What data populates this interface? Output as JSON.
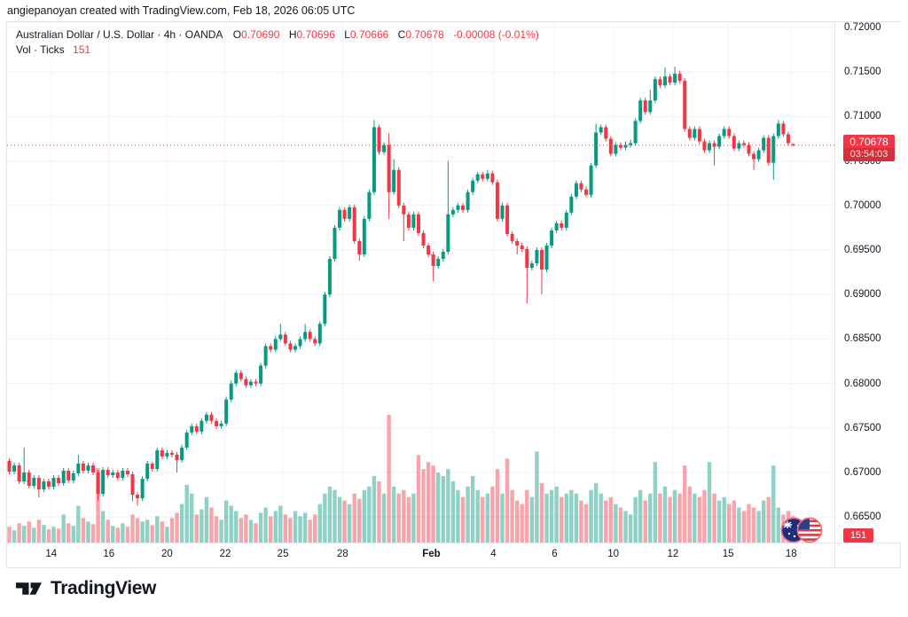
{
  "attribution": "angiepanoyan created with TradingView.com, Feb 18, 2026 06:05 UTC",
  "legend": {
    "symbol_title": "Australian Dollar / U.S. Dollar · 4h · OANDA",
    "o_label": "O",
    "o_value": "0.70690",
    "h_label": "H",
    "h_value": "0.70696",
    "l_label": "L",
    "l_value": "0.70666",
    "c_label": "C",
    "c_value": "0.70678",
    "change": "-0.00008 (-0.01%)",
    "volume_label": "Vol · Ticks",
    "volume_value": "151"
  },
  "price_badge": {
    "price": "0.70678",
    "countdown": "03:54:03"
  },
  "volume_badge": "151",
  "logo_text": "TradingView",
  "colors": {
    "up": "#089981",
    "down": "#f23645",
    "accent_red": "#f23645",
    "grid": "#f0f3fa",
    "frame": "#e0e3eb",
    "text": "#131722",
    "vol_up": "rgba(8,153,129,0.45)",
    "vol_down": "rgba(242,54,69,0.45)"
  },
  "chart_data": {
    "type": "candlestick",
    "symbol": "AUD/USD",
    "interval": "4h",
    "exchange": "OANDA",
    "last_close": 0.70678,
    "price_line": 0.70678,
    "y_axis": {
      "min": 0.665,
      "max": 0.72,
      "step": 0.005,
      "labels": [
        "0.72000",
        "0.71500",
        "0.71000",
        "0.70500",
        "0.70000",
        "0.69500",
        "0.69000",
        "0.68500",
        "0.68000",
        "0.67500",
        "0.67000",
        "0.66500"
      ]
    },
    "x_axis": {
      "ticks": [
        {
          "index": 8.5,
          "label": "14"
        },
        {
          "index": 20.2,
          "label": "16"
        },
        {
          "index": 32.0,
          "label": "20"
        },
        {
          "index": 43.8,
          "label": "22"
        },
        {
          "index": 55.5,
          "label": "25"
        },
        {
          "index": 67.6,
          "label": "28"
        },
        {
          "index": 85.6,
          "label": "Feb",
          "bold": true
        },
        {
          "index": 98.2,
          "label": "4"
        },
        {
          "index": 110.6,
          "label": "6"
        },
        {
          "index": 122.5,
          "label": "10"
        },
        {
          "index": 134.6,
          "label": "12"
        },
        {
          "index": 145.8,
          "label": "15"
        },
        {
          "index": 158.6,
          "label": "18"
        }
      ]
    },
    "volume_scale_max": 760,
    "candles": [
      [
        0.6713,
        0.6716,
        0.6698,
        0.6701,
        90
      ],
      [
        0.6701,
        0.6711,
        0.6698,
        0.6708,
        70
      ],
      [
        0.6708,
        0.6711,
        0.6687,
        0.669,
        110
      ],
      [
        0.669,
        0.6728,
        0.6687,
        0.67,
        95
      ],
      [
        0.67,
        0.6703,
        0.6682,
        0.6685,
        120
      ],
      [
        0.6685,
        0.6697,
        0.6682,
        0.6694,
        85
      ],
      [
        0.6694,
        0.6697,
        0.6672,
        0.6681,
        130
      ],
      [
        0.6681,
        0.6693,
        0.6678,
        0.669,
        100
      ],
      [
        0.669,
        0.6693,
        0.6681,
        0.6684,
        75
      ],
      [
        0.6684,
        0.6697,
        0.6681,
        0.6694,
        90
      ],
      [
        0.6694,
        0.6697,
        0.6685,
        0.6688,
        80
      ],
      [
        0.6688,
        0.6705,
        0.6685,
        0.6702,
        160
      ],
      [
        0.6702,
        0.6705,
        0.6688,
        0.6691,
        110
      ],
      [
        0.6691,
        0.6702,
        0.6688,
        0.6699,
        95
      ],
      [
        0.6699,
        0.672,
        0.6696,
        0.671,
        210
      ],
      [
        0.671,
        0.6713,
        0.6699,
        0.6702,
        140
      ],
      [
        0.6702,
        0.6711,
        0.6699,
        0.6708,
        120
      ],
      [
        0.6708,
        0.6711,
        0.6697,
        0.67,
        105
      ],
      [
        0.67,
        0.6703,
        0.6668,
        0.6676,
        425
      ],
      [
        0.6676,
        0.6706,
        0.6673,
        0.6703,
        180
      ],
      [
        0.6703,
        0.6706,
        0.6694,
        0.6697,
        130
      ],
      [
        0.6697,
        0.6703,
        0.6694,
        0.67,
        95
      ],
      [
        0.67,
        0.6703,
        0.6691,
        0.6694,
        85
      ],
      [
        0.6694,
        0.6705,
        0.6691,
        0.6702,
        110
      ],
      [
        0.6702,
        0.6705,
        0.6695,
        0.6698,
        90
      ],
      [
        0.6698,
        0.6701,
        0.6668,
        0.6675,
        160
      ],
      [
        0.6675,
        0.6678,
        0.6663,
        0.6671,
        140
      ],
      [
        0.6671,
        0.6696,
        0.6668,
        0.6693,
        120
      ],
      [
        0.6693,
        0.6713,
        0.669,
        0.671,
        130
      ],
      [
        0.671,
        0.6712,
        0.6701,
        0.6704,
        100
      ],
      [
        0.6704,
        0.6728,
        0.6701,
        0.6725,
        150
      ],
      [
        0.6725,
        0.6728,
        0.6715,
        0.6718,
        120
      ],
      [
        0.6718,
        0.6725,
        0.6715,
        0.6722,
        90
      ],
      [
        0.6722,
        0.6725,
        0.6717,
        0.672,
        140
      ],
      [
        0.672,
        0.6723,
        0.67,
        0.6714,
        170
      ],
      [
        0.6714,
        0.6731,
        0.6711,
        0.6728,
        220
      ],
      [
        0.6728,
        0.6748,
        0.6725,
        0.6745,
        330
      ],
      [
        0.6745,
        0.6755,
        0.6742,
        0.6752,
        280
      ],
      [
        0.6752,
        0.6755,
        0.6743,
        0.6746,
        160
      ],
      [
        0.6746,
        0.6761,
        0.6743,
        0.6758,
        190
      ],
      [
        0.6758,
        0.6768,
        0.6755,
        0.6765,
        260
      ],
      [
        0.6765,
        0.6768,
        0.6755,
        0.6758,
        200
      ],
      [
        0.6758,
        0.6761,
        0.6749,
        0.6752,
        150
      ],
      [
        0.6752,
        0.6758,
        0.6749,
        0.6755,
        130
      ],
      [
        0.6755,
        0.6785,
        0.6752,
        0.6782,
        240
      ],
      [
        0.6782,
        0.6803,
        0.6779,
        0.68,
        210
      ],
      [
        0.68,
        0.6815,
        0.6797,
        0.6812,
        180
      ],
      [
        0.6812,
        0.6815,
        0.6802,
        0.6805,
        140
      ],
      [
        0.6805,
        0.6808,
        0.6795,
        0.6798,
        160
      ],
      [
        0.6798,
        0.6805,
        0.6795,
        0.6802,
        130
      ],
      [
        0.6802,
        0.6805,
        0.6797,
        0.68,
        110
      ],
      [
        0.68,
        0.6823,
        0.6797,
        0.682,
        170
      ],
      [
        0.682,
        0.6845,
        0.6817,
        0.6842,
        200
      ],
      [
        0.6842,
        0.6845,
        0.6835,
        0.6838,
        150
      ],
      [
        0.6838,
        0.6853,
        0.6835,
        0.685,
        180
      ],
      [
        0.685,
        0.6867,
        0.6847,
        0.6855,
        210
      ],
      [
        0.6855,
        0.6858,
        0.6842,
        0.6845,
        160
      ],
      [
        0.6845,
        0.6848,
        0.6835,
        0.6838,
        140
      ],
      [
        0.6838,
        0.6845,
        0.6835,
        0.6842,
        180
      ],
      [
        0.6842,
        0.6853,
        0.6839,
        0.685,
        150
      ],
      [
        0.685,
        0.6867,
        0.6847,
        0.6858,
        170
      ],
      [
        0.6858,
        0.6861,
        0.6847,
        0.685,
        130
      ],
      [
        0.685,
        0.6853,
        0.6842,
        0.6845,
        160
      ],
      [
        0.6845,
        0.687,
        0.6842,
        0.6867,
        220
      ],
      [
        0.6867,
        0.6903,
        0.6864,
        0.69,
        280
      ],
      [
        0.69,
        0.6943,
        0.6897,
        0.694,
        320
      ],
      [
        0.694,
        0.6978,
        0.6937,
        0.6975,
        300
      ],
      [
        0.6975,
        0.6998,
        0.6972,
        0.6995,
        260
      ],
      [
        0.6995,
        0.6998,
        0.6982,
        0.6985,
        240
      ],
      [
        0.6985,
        0.7001,
        0.6982,
        0.6998,
        220
      ],
      [
        0.6998,
        0.7001,
        0.6957,
        0.696,
        280
      ],
      [
        0.696,
        0.6963,
        0.6938,
        0.6945,
        250
      ],
      [
        0.6945,
        0.6988,
        0.6942,
        0.6985,
        300
      ],
      [
        0.6985,
        0.7018,
        0.6982,
        0.7015,
        320
      ],
      [
        0.7015,
        0.7096,
        0.7012,
        0.7088,
        380
      ],
      [
        0.7088,
        0.7091,
        0.7057,
        0.706,
        350
      ],
      [
        0.706,
        0.7071,
        0.7057,
        0.7068,
        280
      ],
      [
        0.7068,
        0.7081,
        0.6985,
        0.7015,
        730
      ],
      [
        0.7015,
        0.7052,
        0.7012,
        0.704,
        320
      ],
      [
        0.704,
        0.7043,
        0.6997,
        0.7,
        280
      ],
      [
        0.7,
        0.7003,
        0.696,
        0.699,
        300
      ],
      [
        0.699,
        0.6993,
        0.6972,
        0.6975,
        260
      ],
      [
        0.6975,
        0.6993,
        0.6972,
        0.699,
        280
      ],
      [
        0.699,
        0.6993,
        0.6966,
        0.6969,
        500
      ],
      [
        0.6969,
        0.6972,
        0.6952,
        0.6955,
        420
      ],
      [
        0.6955,
        0.6958,
        0.6942,
        0.6945,
        460
      ],
      [
        0.6945,
        0.6948,
        0.6915,
        0.6932,
        440
      ],
      [
        0.6932,
        0.6943,
        0.6929,
        0.694,
        400
      ],
      [
        0.694,
        0.6951,
        0.6937,
        0.6948,
        380
      ],
      [
        0.6948,
        0.705,
        0.6945,
        0.699,
        420
      ],
      [
        0.699,
        0.6998,
        0.6987,
        0.6995,
        350
      ],
      [
        0.6995,
        0.7003,
        0.6992,
        0.7,
        300
      ],
      [
        0.7,
        0.7003,
        0.6992,
        0.6995,
        260
      ],
      [
        0.6995,
        0.7018,
        0.6992,
        0.7015,
        320
      ],
      [
        0.7015,
        0.7031,
        0.7012,
        0.7028,
        380
      ],
      [
        0.7028,
        0.7038,
        0.7025,
        0.7035,
        300
      ],
      [
        0.7035,
        0.7038,
        0.7027,
        0.703,
        260
      ],
      [
        0.703,
        0.704,
        0.7027,
        0.7036,
        280
      ],
      [
        0.7036,
        0.7039,
        0.7023,
        0.7026,
        320
      ],
      [
        0.7026,
        0.7029,
        0.6982,
        0.6985,
        420
      ],
      [
        0.6985,
        0.7003,
        0.6982,
        0.7,
        280
      ],
      [
        0.7,
        0.7003,
        0.6965,
        0.6968,
        480
      ],
      [
        0.6968,
        0.6971,
        0.6957,
        0.696,
        300
      ],
      [
        0.696,
        0.6963,
        0.6945,
        0.6955,
        240
      ],
      [
        0.6955,
        0.6958,
        0.6948,
        0.6951,
        220
      ],
      [
        0.6951,
        0.6954,
        0.689,
        0.693,
        300
      ],
      [
        0.693,
        0.6938,
        0.6927,
        0.6935,
        260
      ],
      [
        0.6935,
        0.6953,
        0.6932,
        0.695,
        520
      ],
      [
        0.695,
        0.6953,
        0.69,
        0.6928,
        340
      ],
      [
        0.6928,
        0.6958,
        0.6925,
        0.6955,
        280
      ],
      [
        0.6955,
        0.6975,
        0.6952,
        0.6972,
        300
      ],
      [
        0.6972,
        0.6983,
        0.6969,
        0.698,
        320
      ],
      [
        0.698,
        0.6983,
        0.6972,
        0.6975,
        260
      ],
      [
        0.6975,
        0.6995,
        0.6972,
        0.6992,
        280
      ],
      [
        0.6992,
        0.7013,
        0.6989,
        0.701,
        300
      ],
      [
        0.701,
        0.7028,
        0.7007,
        0.7025,
        280
      ],
      [
        0.7025,
        0.7028,
        0.7015,
        0.7018,
        240
      ],
      [
        0.7018,
        0.7021,
        0.7009,
        0.7012,
        220
      ],
      [
        0.7012,
        0.7048,
        0.7009,
        0.7045,
        300
      ],
      [
        0.7045,
        0.7092,
        0.7042,
        0.7082,
        340
      ],
      [
        0.7082,
        0.7091,
        0.7079,
        0.7088,
        280
      ],
      [
        0.7088,
        0.7091,
        0.7072,
        0.7075,
        240
      ],
      [
        0.7075,
        0.7078,
        0.7055,
        0.7058,
        260
      ],
      [
        0.7058,
        0.7071,
        0.7055,
        0.7068,
        220
      ],
      [
        0.7068,
        0.7071,
        0.7062,
        0.7065,
        200
      ],
      [
        0.7065,
        0.7072,
        0.7062,
        0.7068,
        180
      ],
      [
        0.7068,
        0.7074,
        0.7065,
        0.707,
        160
      ],
      [
        0.707,
        0.7098,
        0.7067,
        0.7095,
        260
      ],
      [
        0.7095,
        0.7121,
        0.7092,
        0.7118,
        300
      ],
      [
        0.7118,
        0.7121,
        0.7102,
        0.7105,
        240
      ],
      [
        0.7105,
        0.713,
        0.7102,
        0.7118,
        280
      ],
      [
        0.7118,
        0.7145,
        0.7115,
        0.7142,
        460
      ],
      [
        0.7142,
        0.7145,
        0.7132,
        0.7135,
        280
      ],
      [
        0.7135,
        0.7155,
        0.7132,
        0.7145,
        320
      ],
      [
        0.7145,
        0.7148,
        0.7135,
        0.7138,
        260
      ],
      [
        0.7138,
        0.7156,
        0.7135,
        0.7148,
        300
      ],
      [
        0.7148,
        0.7151,
        0.7137,
        0.714,
        280
      ],
      [
        0.714,
        0.7143,
        0.7083,
        0.7086,
        440
      ],
      [
        0.7086,
        0.7089,
        0.7073,
        0.7076,
        320
      ],
      [
        0.7076,
        0.7089,
        0.7073,
        0.7086,
        280
      ],
      [
        0.7086,
        0.7089,
        0.7069,
        0.7072,
        260
      ],
      [
        0.7072,
        0.7075,
        0.7059,
        0.7062,
        300
      ],
      [
        0.7062,
        0.7073,
        0.7059,
        0.707,
        460
      ],
      [
        0.707,
        0.7073,
        0.7045,
        0.7066,
        280
      ],
      [
        0.7066,
        0.7081,
        0.7063,
        0.7078,
        240
      ],
      [
        0.7078,
        0.7089,
        0.7075,
        0.7086,
        260
      ],
      [
        0.7086,
        0.7089,
        0.7075,
        0.7078,
        220
      ],
      [
        0.7078,
        0.7081,
        0.7061,
        0.7064,
        240
      ],
      [
        0.7064,
        0.7073,
        0.7061,
        0.707,
        200
      ],
      [
        0.707,
        0.7073,
        0.7065,
        0.7068,
        180
      ],
      [
        0.7068,
        0.7071,
        0.7055,
        0.7058,
        220
      ],
      [
        0.7058,
        0.7061,
        0.704,
        0.7052,
        200
      ],
      [
        0.7052,
        0.7065,
        0.7049,
        0.7062,
        180
      ],
      [
        0.7062,
        0.7079,
        0.7059,
        0.7076,
        240
      ],
      [
        0.7076,
        0.7079,
        0.7045,
        0.7048,
        260
      ],
      [
        0.7048,
        0.7081,
        0.7029,
        0.7078,
        440
      ],
      [
        0.7078,
        0.7096,
        0.7075,
        0.7092,
        200
      ],
      [
        0.7092,
        0.7095,
        0.7077,
        0.708,
        160
      ],
      [
        0.708,
        0.7083,
        0.7067,
        0.707,
        180
      ],
      [
        0.7069,
        0.70696,
        0.70666,
        0.70678,
        151
      ]
    ]
  }
}
